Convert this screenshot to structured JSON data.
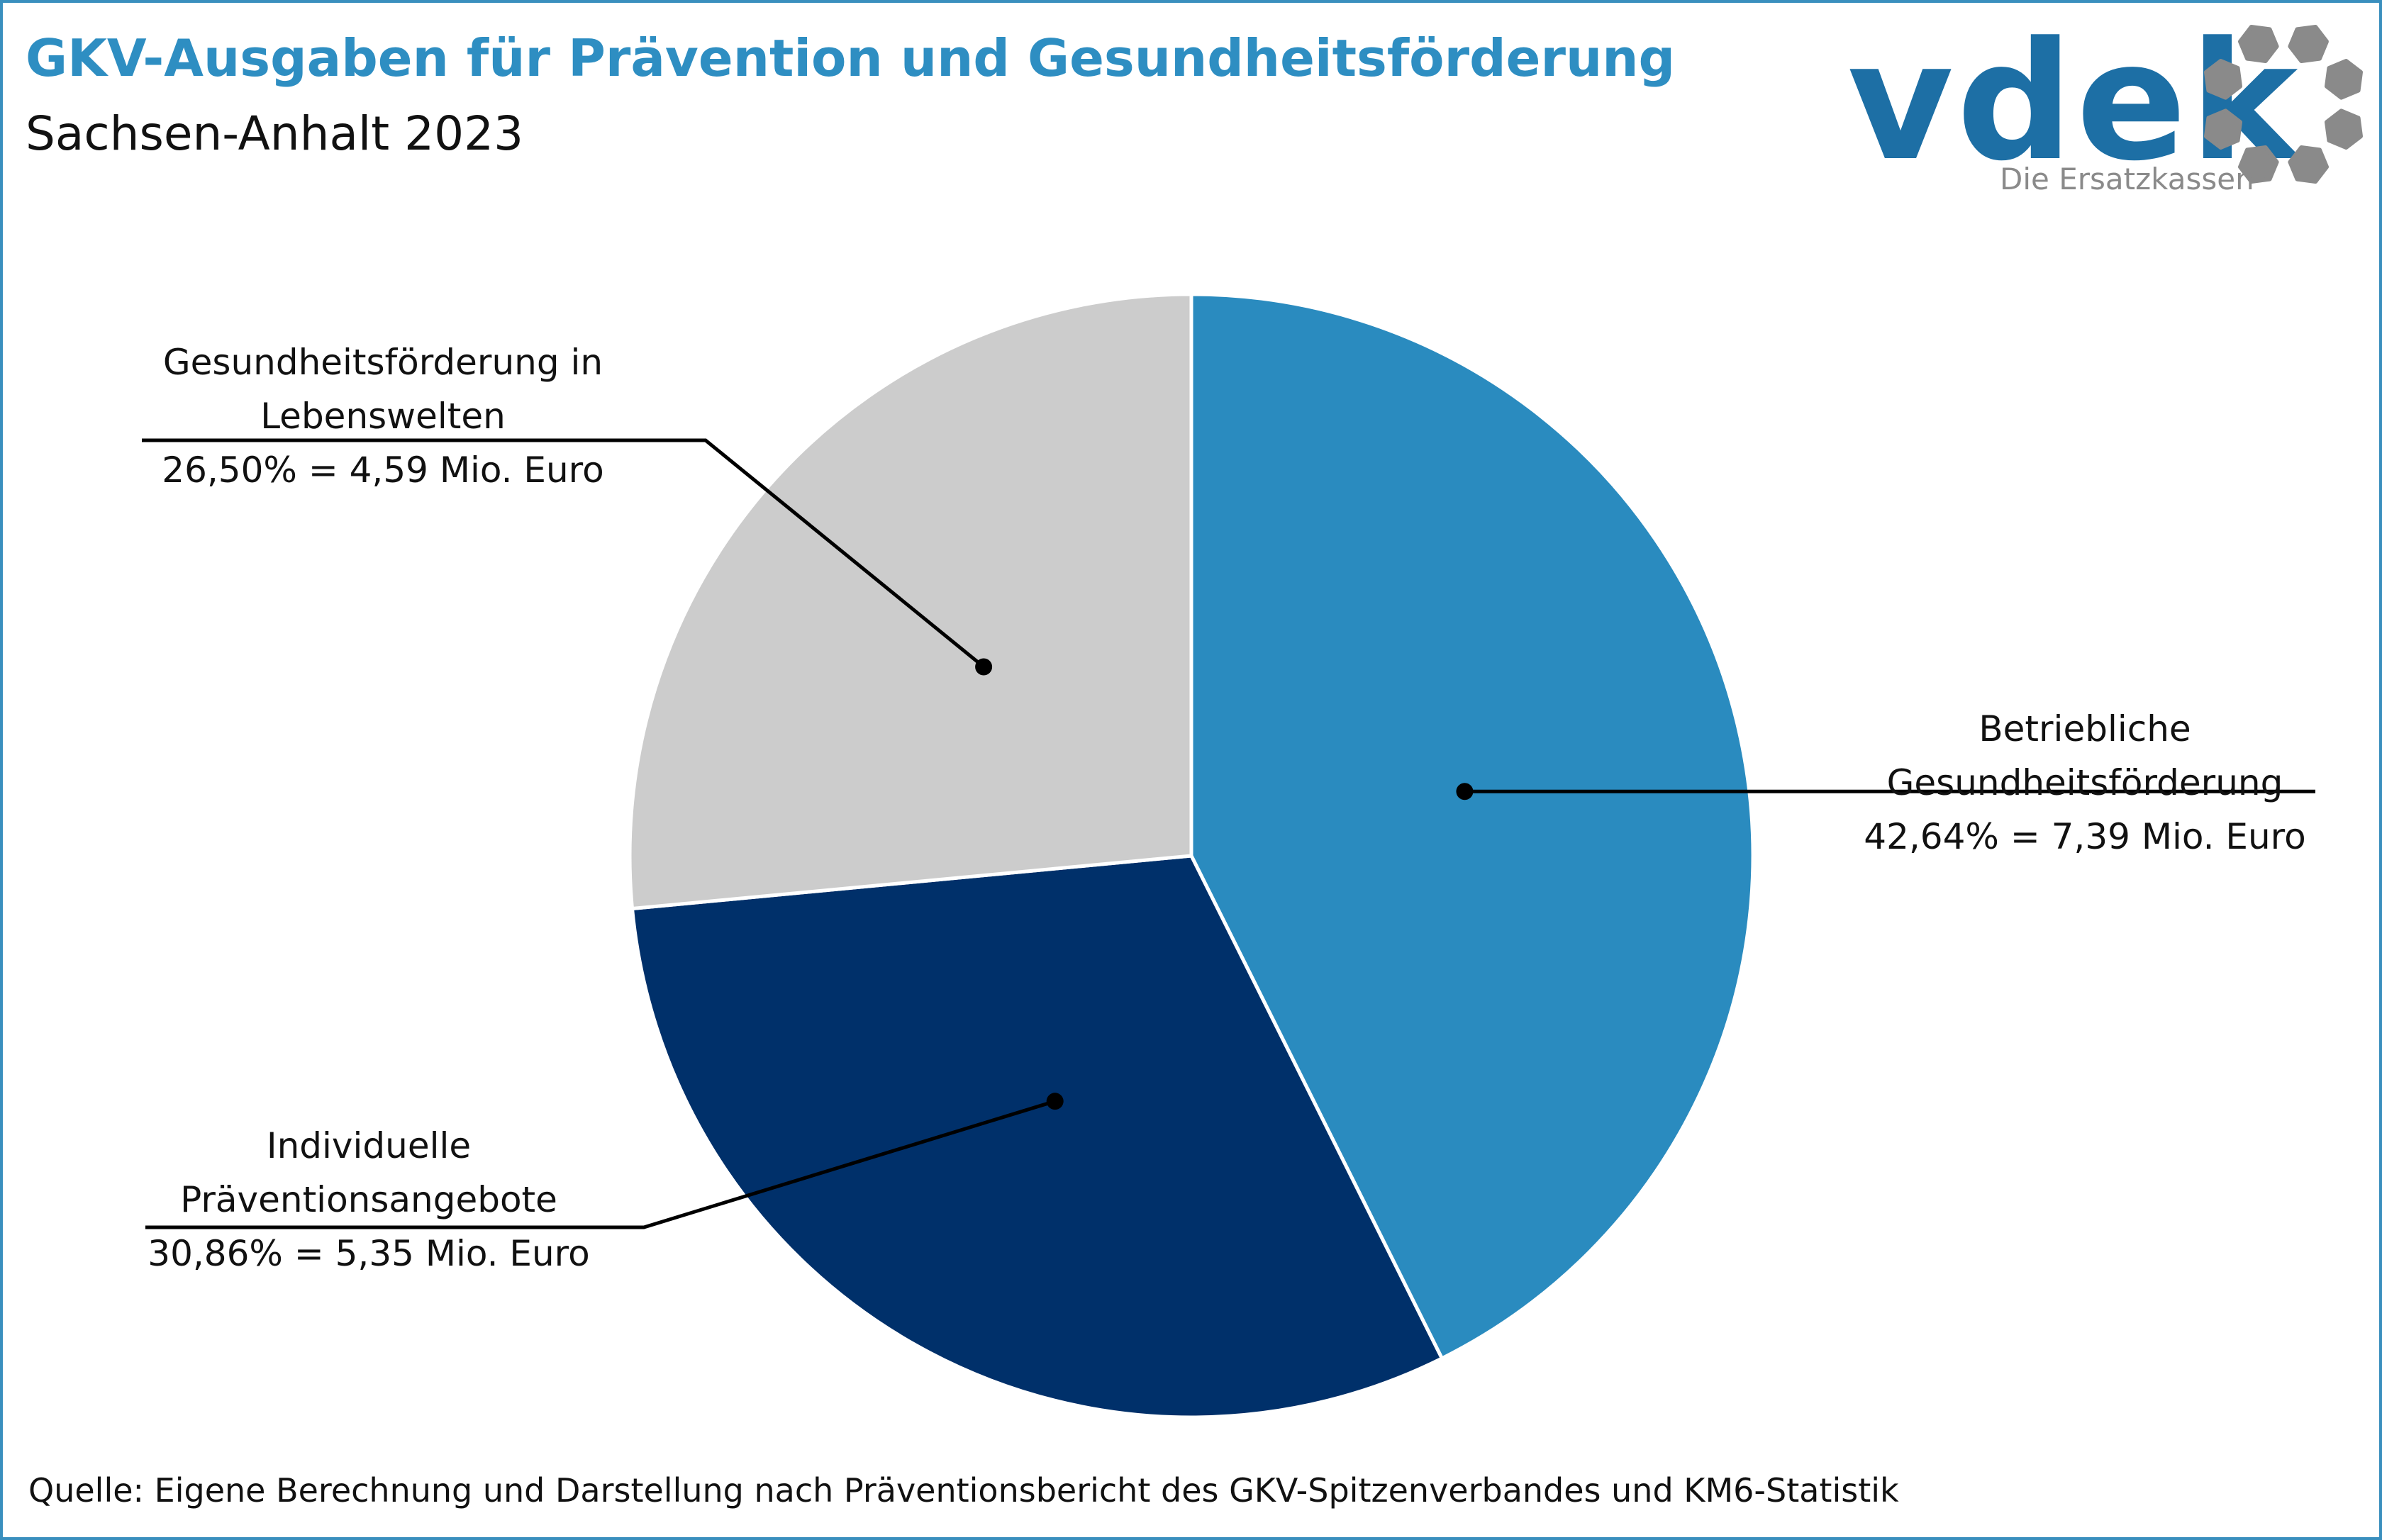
{
  "header": {
    "title": "GKV-Ausgaben für Prävention und Gesundheitsförderung",
    "subtitle": "Sachsen-Anhalt 2023"
  },
  "logo": {
    "wordmark": "vdek",
    "tagline": "Die Ersatzkassen",
    "brand_color": "#1d6fa5",
    "ring_color": "#8a8a8a"
  },
  "footer": {
    "source": "Quelle: Eigene Berechnung und Darstellung nach Präventionsbericht des GKV-Spitzenverbandes und KM6-Statistik"
  },
  "chart_data": {
    "type": "pie",
    "title": "GKV-Ausgaben für Prävention und Gesundheitsförderung",
    "subtitle": "Sachsen-Anhalt 2023",
    "slices": [
      {
        "label_line1": "Betriebliche",
        "label_line2": "Gesundheitsförderung",
        "value_label": "42,64% = 7,39 Mio. Euro",
        "percent": 42.64,
        "value_mio_euro": 7.39,
        "color": "#2a8bbf"
      },
      {
        "label_line1": "Individuelle",
        "label_line2": "Präventionsangebote",
        "value_label": "30,86% = 5,35 Mio. Euro",
        "percent": 30.86,
        "value_mio_euro": 5.35,
        "color": "#00306a"
      },
      {
        "label_line1": "Gesundheitsförderung in",
        "label_line2": "Lebenswelten",
        "value_label": "26,50% = 4,59 Mio. Euro",
        "percent": 26.5,
        "value_mio_euro": 4.59,
        "color": "#cccccc"
      }
    ]
  }
}
